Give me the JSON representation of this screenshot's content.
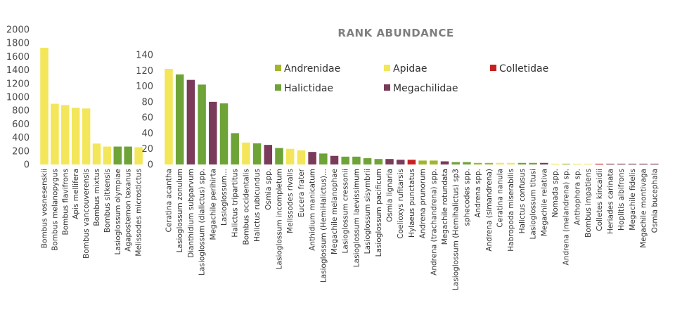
{
  "title": "RANK ABUNDANCE",
  "colors": {
    "Andrenidae": "#a3b52a",
    "Apidae": "#f3e65a",
    "Colletidae": "#c8201f",
    "Halictidae": "#6ea337",
    "Megachilidae": "#7a3a5a"
  },
  "legend": [
    {
      "label": "Andrenidae",
      "family": "Andrenidae"
    },
    {
      "label": "Apidae",
      "family": "Apidae"
    },
    {
      "label": "Colletidae",
      "family": "Colletidae"
    },
    {
      "label": "Halictidae",
      "family": "Halictidae"
    },
    {
      "label": "Megachilidae",
      "family": "Megachilidae"
    }
  ],
  "chart_data": [
    {
      "type": "bar",
      "ylim": [
        0,
        2000
      ],
      "yticks": [
        "0",
        "200",
        "400",
        "600",
        "800",
        "1000",
        "1200",
        "1400",
        "1600",
        "1800",
        "2000"
      ],
      "categories": [
        "Bombus vosnesenskii",
        "Bombus melanopygus",
        "Bombus flavifrons",
        "Apis mellifera",
        "Bombus vancouverensis",
        "Bombus mixtus",
        "Bombus sitkensis",
        "Lasioglossum olympiae",
        "Agapostemon texanus",
        "Melissodes microstictus"
      ],
      "values": [
        1730,
        900,
        880,
        840,
        830,
        310,
        265,
        265,
        265,
        255
      ],
      "families": [
        "Apidae",
        "Apidae",
        "Apidae",
        "Apidae",
        "Apidae",
        "Apidae",
        "Apidae",
        "Halictidae",
        "Halictidae",
        "Apidae"
      ]
    },
    {
      "type": "bar",
      "ylim": [
        0,
        140
      ],
      "yticks": [
        "0",
        "20",
        "40",
        "60",
        "80",
        "100",
        "120",
        "140"
      ],
      "categories": [
        "Ceratina acantha",
        "Lasioglossum zonulum",
        "Dianthidium subparvum",
        "Lasioglossum (dialictus) spp.",
        "Megachile perihirta",
        "Lasioglossum...",
        "Halictus tripartitus",
        "Bombus occidentalis",
        "Halictus rubicundus",
        "Osmia spp.",
        "Lasioglossum incompletum",
        "Melissodes rivalis",
        "Eucera frater",
        "Anthidium manicatum",
        "Lasioglossum (HemiHalictus)...",
        "Megachile melanophae",
        "Lasioglossum cressonii",
        "Lasioglossum laevissimum",
        "Lasioglossum sisymbrii",
        "Lasioglossum pacificum",
        "Osmia lignaria",
        "Coelioxys rufitarsis",
        "Hylaeus punctatus",
        "Andrena prunorum",
        "Andrena (trachandrena) spp.",
        "Megachile rotundata",
        "Lasioglossum (Hemihalictus) sp3",
        "sphecodes spp.",
        "Andrena spp.",
        "Andrena (simandrena)",
        "Ceratina nanula",
        "Habropoda miserabilis",
        "Halictus confusus",
        "Lasioglossum titusi",
        "Megachile relativa",
        "Nomada spp.",
        "Andrena (melandrena) sp.",
        "Anthophora sp.",
        "Bombus impatiens",
        "Colletes kincaidii",
        "Heriades carinata",
        "Hoplitis albifrons",
        "Megachile fidelis",
        "Megachile montivaga",
        "Osmia bucephala"
      ],
      "values": [
        122,
        115,
        108,
        102,
        80,
        78,
        40,
        28,
        27,
        25,
        21,
        20,
        18,
        16,
        14,
        11,
        10,
        10,
        8,
        7,
        7,
        6,
        6,
        5,
        5,
        4,
        3,
        3,
        2,
        2,
        2,
        2,
        2,
        2,
        2,
        1,
        1,
        1,
        1,
        1,
        1,
        1,
        1,
        1,
        1
      ],
      "families": [
        "Apidae",
        "Halictidae",
        "Megachilidae",
        "Halictidae",
        "Megachilidae",
        "Halictidae",
        "Halictidae",
        "Apidae",
        "Halictidae",
        "Megachilidae",
        "Halictidae",
        "Apidae",
        "Apidae",
        "Megachilidae",
        "Halictidae",
        "Megachilidae",
        "Halictidae",
        "Halictidae",
        "Halictidae",
        "Halictidae",
        "Megachilidae",
        "Megachilidae",
        "Colletidae",
        "Andrenidae",
        "Andrenidae",
        "Megachilidae",
        "Halictidae",
        "Halictidae",
        "Andrenidae",
        "Andrenidae",
        "Apidae",
        "Apidae",
        "Halictidae",
        "Halictidae",
        "Megachilidae",
        "Apidae",
        "Andrenidae",
        "Apidae",
        "Apidae",
        "Colletidae",
        "Megachilidae",
        "Megachilidae",
        "Megachilidae",
        "Megachilidae",
        "Megachilidae"
      ]
    }
  ]
}
